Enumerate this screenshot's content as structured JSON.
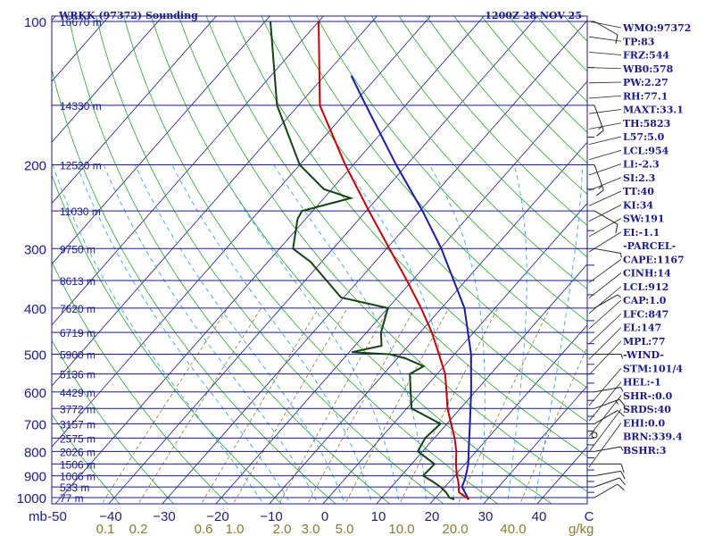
{
  "header": {
    "station": "WRKK (97372) Sounding",
    "time": "1200Z 28 NOV 25"
  },
  "indices": [
    "WMO:97372",
    "TP:83",
    "FRZ:544",
    "WB0:578",
    "PW:2.27",
    "RH:77.1",
    "MAXT:33.1",
    "TH:5823",
    "L57:5.0",
    "LCL:954",
    "LI:-2.3",
    "SI:2.3",
    "TT:40",
    "KI:34",
    "SW:191",
    "EI:-1.1",
    "-PARCEL-",
    "CAPE:1167",
    "CINH:14",
    "LCL:912",
    "CAP:1.0",
    "LFC:847",
    "EL:147",
    "MPL:77",
    "-WIND-",
    "STM:101/4",
    "HEL:-1",
    "SHR-:0.0",
    "SRDS:40",
    "EHI:0.0",
    "BRN:339.4",
    "BSHR:3"
  ],
  "colors": {
    "axis": "#1a1a8c",
    "isobar": "#1a1a8c",
    "isotherm": "#1a1a8c",
    "dry_adiabat": "#22aa22",
    "moist_adiabat": "#33aadd",
    "mixing_ratio": "#8a7a2a",
    "temperature": "#cc0000",
    "dewpoint": "#114411",
    "parcel": "#1a1aa8",
    "wind": "#222222"
  },
  "chart_data": {
    "type": "skew-t log-p",
    "pressure_axis": {
      "unit_label": "mb",
      "ticks": [
        100,
        200,
        300,
        400,
        500,
        600,
        700,
        800,
        900,
        1000
      ],
      "range": [
        1000,
        100
      ],
      "scale": "log"
    },
    "temperature_axis": {
      "ticks": [
        -50,
        -40,
        -30,
        -20,
        -10,
        0,
        10,
        20,
        30,
        40
      ],
      "tick_labels": [
        "-50",
        "−40",
        "−30",
        "−20",
        "−10",
        "0",
        "10",
        "20",
        "30",
        "40"
      ],
      "unit_label": "C"
    },
    "mixing_ratio_axis": {
      "ticks": [
        0.1,
        0.2,
        0.6,
        1.0,
        2.0,
        3.0,
        5.0,
        10.0,
        20.0,
        40.0
      ],
      "tick_labels": [
        "0.1",
        "0.2",
        "0.6",
        "1.0",
        "2.0",
        "3.0",
        "5.0",
        "10.0",
        "20.0",
        "40.0"
      ],
      "unit_label": "g/kg"
    },
    "heights": [
      {
        "p": 100,
        "label": "16670 m"
      },
      {
        "p": 150,
        "label": "14330 m"
      },
      {
        "p": 200,
        "label": "12520 m"
      },
      {
        "p": 250,
        "label": "11030 m"
      },
      {
        "p": 300,
        "label": "9750 m"
      },
      {
        "p": 350,
        "label": "8613 m"
      },
      {
        "p": 400,
        "label": "7620 m"
      },
      {
        "p": 450,
        "label": "6719 m"
      },
      {
        "p": 500,
        "label": "5900 m"
      },
      {
        "p": 550,
        "label": "5136 m"
      },
      {
        "p": 600,
        "label": "4429 m"
      },
      {
        "p": 650,
        "label": "3772 m"
      },
      {
        "p": 700,
        "label": "3157 m"
      },
      {
        "p": 750,
        "label": "2575 m"
      },
      {
        "p": 800,
        "label": "2026 m"
      },
      {
        "p": 850,
        "label": "1506 m"
      },
      {
        "p": 900,
        "label": "1006 m"
      },
      {
        "p": 950,
        "label": "533 m"
      },
      {
        "p": 1000,
        "label": "77 m"
      }
    ],
    "temperature": [
      [
        1009,
        26.5
      ],
      [
        1000,
        25.8
      ],
      [
        975,
        23.5
      ],
      [
        950,
        22.6
      ],
      [
        925,
        21.6
      ],
      [
        900,
        20.4
      ],
      [
        850,
        18.3
      ],
      [
        800,
        16.3
      ],
      [
        750,
        13.8
      ],
      [
        700,
        10.8
      ],
      [
        650,
        7.6
      ],
      [
        600,
        4.7
      ],
      [
        550,
        1.5
      ],
      [
        500,
        -2.9
      ],
      [
        450,
        -7.8
      ],
      [
        400,
        -13.8
      ],
      [
        350,
        -21.0
      ],
      [
        300,
        -29.5
      ],
      [
        250,
        -39.5
      ],
      [
        200,
        -51.5
      ],
      [
        150,
        -66.0
      ],
      [
        100,
        -80.0
      ]
    ],
    "dewpoint": [
      [
        1009,
        23.8
      ],
      [
        1000,
        22.6
      ],
      [
        975,
        21.1
      ],
      [
        950,
        19.2
      ],
      [
        925,
        16.8
      ],
      [
        900,
        14.1
      ],
      [
        850,
        14.3
      ],
      [
        800,
        9.1
      ],
      [
        750,
        8.3
      ],
      [
        700,
        8.8
      ],
      [
        650,
        0.9
      ],
      [
        600,
        -2.0
      ],
      [
        550,
        -5.1
      ],
      [
        530,
        -3.8
      ],
      [
        510,
        -8.5
      ],
      [
        500,
        -12.0
      ],
      [
        495,
        -19.5
      ],
      [
        480,
        -15.0
      ],
      [
        450,
        -17.3
      ],
      [
        400,
        -20.0
      ],
      [
        380,
        -30.5
      ],
      [
        320,
        -42.0
      ],
      [
        300,
        -47.5
      ],
      [
        260,
        -51.5
      ],
      [
        250,
        -52.0
      ],
      [
        235,
        -45.0
      ],
      [
        225,
        -51.5
      ],
      [
        200,
        -60.0
      ],
      [
        150,
        -74.0
      ],
      [
        100,
        -89.0
      ]
    ],
    "parcel": [
      [
        1009,
        26.5
      ],
      [
        950,
        23.2
      ],
      [
        912,
        22.4
      ],
      [
        850,
        20.6
      ],
      [
        800,
        18.6
      ],
      [
        700,
        14.3
      ],
      [
        600,
        9.3
      ],
      [
        500,
        3.1
      ],
      [
        400,
        -5.7
      ],
      [
        300,
        -19.8
      ],
      [
        250,
        -29.5
      ],
      [
        200,
        -42.0
      ],
      [
        147,
        -58.5
      ],
      [
        130,
        -65.0
      ]
    ],
    "wind_barbs": [
      {
        "p": 1000,
        "dir": 60,
        "spd": 10
      },
      {
        "p": 950,
        "dir": 70,
        "spd": 10
      },
      {
        "p": 900,
        "dir": 80,
        "spd": 10
      },
      {
        "p": 850,
        "dir": 90,
        "spd": 10
      },
      {
        "p": 800,
        "dir": 80,
        "spd": 5
      },
      {
        "p": 700,
        "dir": 60,
        "spd": 10
      },
      {
        "p": 650,
        "dir": 70,
        "spd": 15
      },
      {
        "p": 600,
        "dir": 80,
        "spd": 5
      },
      {
        "p": 500,
        "dir": 90,
        "spd": 5
      },
      {
        "p": 400,
        "dir": 60,
        "spd": 5
      },
      {
        "p": 300,
        "dir": 100,
        "spd": 5
      },
      {
        "p": 250,
        "dir": 120,
        "spd": 10
      },
      {
        "p": 200,
        "dir": 160,
        "spd": 15
      },
      {
        "p": 150,
        "dir": 160,
        "spd": 15
      },
      {
        "p": 100,
        "dir": 120,
        "spd": 10
      }
    ]
  }
}
